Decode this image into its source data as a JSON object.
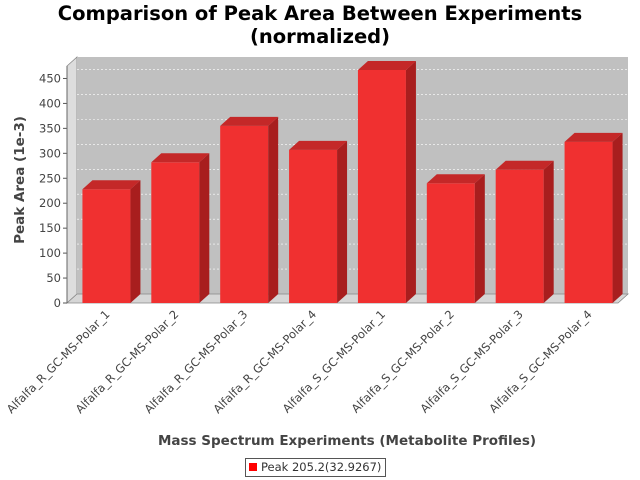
{
  "chart_data": {
    "type": "bar",
    "title": "Comparison of Peak Area Between Experiments (normalized)",
    "title_lines": [
      "Comparison of Peak Area Between Experiments",
      "(normalized)"
    ],
    "xlabel": "Mass Spectrum Experiments (Metabolite Profiles)",
    "ylabel": "Peak Area (1e-3)",
    "categories": [
      "Alfalfa_R_GC-MS-Polar_1",
      "Alfalfa_R_GC-MS-Polar_2",
      "Alfalfa_R_GC-MS-Polar_3",
      "Alfalfa_R_GC-MS-Polar_4",
      "Alfalfa_S_GC-MS-Polar_1",
      "Alfalfa_S_GC-MS-Polar_2",
      "Alfalfa_S_GC-MS-Polar_3",
      "Alfalfa_S_GC-MS-Polar_4"
    ],
    "series": [
      {
        "name": "Peak 205.2(32.9267)",
        "values": [
          228,
          282,
          355,
          307,
          467,
          240,
          267,
          323
        ]
      }
    ],
    "ylim": [
      0,
      475
    ],
    "yticks": [
      0,
      50,
      100,
      150,
      200,
      250,
      300,
      350,
      400,
      450
    ],
    "grid": true,
    "legend_position": "bottom",
    "colors": {
      "bar": "#f03030",
      "bar_side": "#a81e1e",
      "bar_top": "#c42828",
      "plot_bg": "#c0c0c0",
      "wall": "#dddddd",
      "floor": "#d6d6d6"
    }
  }
}
